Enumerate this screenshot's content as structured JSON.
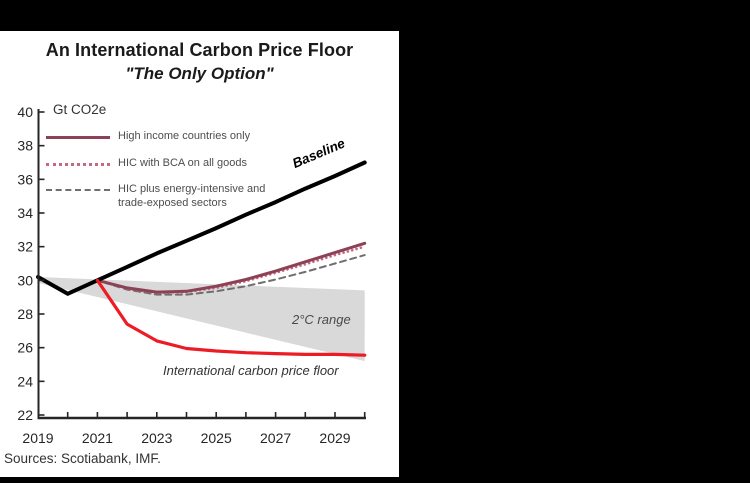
{
  "page": {
    "background_color": "#000000",
    "sources_note": "Sources: Scotiabank, IMF."
  },
  "chart_data": {
    "type": "line",
    "title": "An International Carbon Price Floor",
    "subtitle": "\"The Only Option\"",
    "unit_label": "Gt CO2e",
    "grid": false,
    "legend_position": "top-left-inside",
    "xlim": [
      2019,
      2030
    ],
    "ylim": [
      22,
      40
    ],
    "x_years": [
      2019,
      2020,
      2021,
      2022,
      2023,
      2024,
      2025,
      2026,
      2027,
      2028,
      2029,
      2030
    ],
    "x_tick_labels": [
      "2019",
      "2021",
      "2023",
      "2025",
      "2027",
      "2029"
    ],
    "y_ticks": [
      40,
      38,
      36,
      34,
      32,
      30,
      28,
      26,
      24,
      22
    ],
    "series": [
      {
        "name": "Baseline",
        "color": "#000000",
        "style": "solid",
        "width": 4,
        "start_year": 2019,
        "values": [
          30.2,
          29.2,
          30.0,
          30.8,
          31.6,
          32.35,
          33.1,
          33.9,
          34.65,
          35.45,
          36.2,
          37.0
        ]
      },
      {
        "name": "High income countries only",
        "color": "#8C4157",
        "style": "solid",
        "width": 3,
        "start_year": 2019,
        "values": [
          30.2,
          29.2,
          30.0,
          29.55,
          29.3,
          29.35,
          29.65,
          30.05,
          30.55,
          31.1,
          31.65,
          32.2
        ]
      },
      {
        "name": "HIC with BCA on all goods",
        "color": "#C4697F",
        "style": "dotted",
        "width": 2.6,
        "start_year": 2019,
        "values": [
          30.2,
          29.2,
          30.0,
          29.5,
          29.25,
          29.3,
          29.55,
          29.95,
          30.45,
          30.95,
          31.5,
          32.0
        ]
      },
      {
        "name": "HIC plus energy-intensive and trade-exposed sectors",
        "color": "#6E6E6E",
        "style": "dashed",
        "width": 2,
        "start_year": 2019,
        "values": [
          30.2,
          29.2,
          30.0,
          29.45,
          29.15,
          29.15,
          29.35,
          29.65,
          30.05,
          30.5,
          31.0,
          31.5
        ]
      },
      {
        "name": "International carbon price floor",
        "color": "#ED1B24",
        "style": "solid",
        "width": 3.2,
        "start_year": 2021,
        "values": [
          30.0,
          27.4,
          26.4,
          25.95,
          25.8,
          25.7,
          25.65,
          25.6,
          25.6,
          25.55
        ]
      }
    ],
    "band": {
      "label": "2°C range",
      "color": "#D9D9D9",
      "top_edge": {
        "start": [
          2019,
          30.2
        ],
        "end": [
          2030,
          29.4
        ]
      },
      "bottom_edge": {
        "start": [
          2019,
          29.85
        ],
        "end": [
          2030,
          25.2
        ]
      }
    },
    "annotations": {
      "baseline_label": "Baseline",
      "band_label": "2°C range",
      "floor_label": "International carbon price floor"
    }
  }
}
